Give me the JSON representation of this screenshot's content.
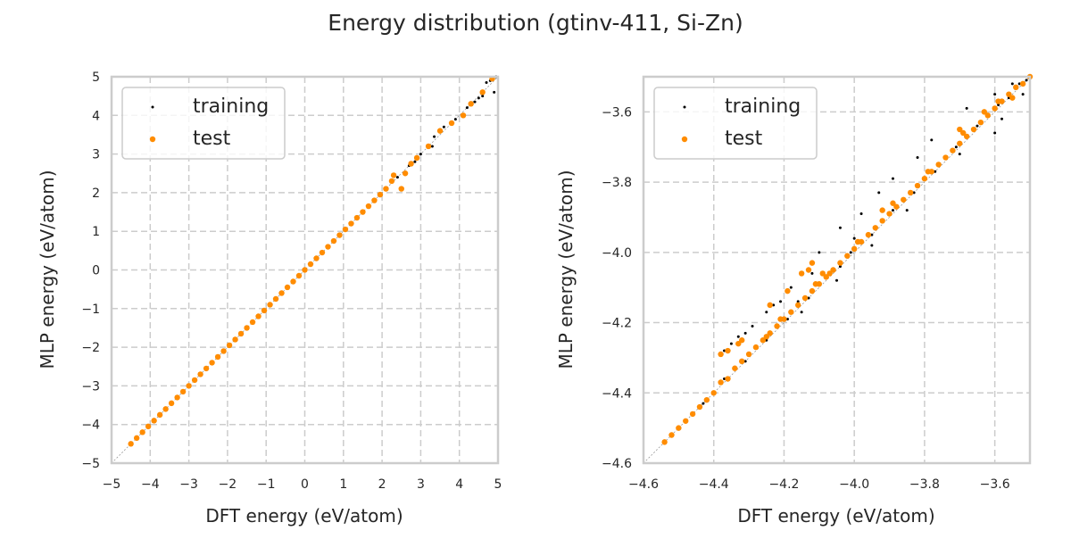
{
  "title": "Energy distribution (gtinv-411, Si-Zn)",
  "colors": {
    "training": "#000000",
    "test": "#ff8c00",
    "grid": "#cccccc",
    "frame": "#cccccc",
    "diagonal": "#999999"
  },
  "chart_data": [
    {
      "type": "scatter",
      "xlabel": "DFT energy (eV/atom)",
      "ylabel": "MLP energy (eV/atom)",
      "xlim": [
        -5,
        5
      ],
      "ylim": [
        -5,
        5
      ],
      "xticks": [
        -5,
        -4,
        -3,
        -2,
        -1,
        0,
        1,
        2,
        3,
        4,
        5
      ],
      "yticks": [
        -5,
        -4,
        -3,
        -2,
        -1,
        0,
        1,
        2,
        3,
        4,
        5
      ],
      "xtick_labels": [
        "−5",
        "−4",
        "−3",
        "−2",
        "−1",
        "0",
        "1",
        "2",
        "3",
        "4",
        "5"
      ],
      "ytick_labels": [
        "−5",
        "−4",
        "−3",
        "−2",
        "−1",
        "0",
        "1",
        "2",
        "3",
        "4",
        "5"
      ],
      "grid": true,
      "legend": {
        "placement": "top-left",
        "entries": [
          "training",
          "test"
        ]
      },
      "series": [
        {
          "name": "training",
          "points": [
            [
              -4.5,
              -4.5
            ],
            [
              -4.2,
              -4.2
            ],
            [
              -3.9,
              -3.9
            ],
            [
              -3.6,
              -3.6
            ],
            [
              -3.3,
              -3.3
            ],
            [
              -3.0,
              -3.0
            ],
            [
              -2.7,
              -2.7
            ],
            [
              -2.4,
              -2.4
            ],
            [
              -2.1,
              -2.1
            ],
            [
              -1.8,
              -1.8
            ],
            [
              -1.5,
              -1.5
            ],
            [
              -1.2,
              -1.2
            ],
            [
              -0.9,
              -0.9
            ],
            [
              -0.6,
              -0.6
            ],
            [
              -0.3,
              -0.3
            ],
            [
              0.0,
              0.0
            ],
            [
              0.3,
              0.3
            ],
            [
              0.6,
              0.6
            ],
            [
              0.9,
              0.9
            ],
            [
              1.2,
              1.2
            ],
            [
              1.5,
              1.5
            ],
            [
              1.8,
              1.8
            ],
            [
              2.1,
              2.1
            ],
            [
              2.4,
              2.4
            ],
            [
              2.7,
              2.7
            ],
            [
              3.0,
              3.0
            ],
            [
              3.3,
              3.2
            ],
            [
              3.6,
              3.7
            ],
            [
              3.9,
              3.9
            ],
            [
              4.2,
              4.2
            ],
            [
              4.5,
              4.45
            ],
            [
              4.6,
              4.5
            ],
            [
              4.7,
              4.85
            ],
            [
              4.8,
              4.9
            ],
            [
              4.9,
              4.6
            ],
            [
              4.95,
              5.0
            ],
            [
              4.4,
              4.35
            ],
            [
              3.35,
              3.45
            ],
            [
              2.85,
              2.8
            ]
          ]
        },
        {
          "name": "test",
          "points": [
            [
              -4.5,
              -4.5
            ],
            [
              -4.35,
              -4.35
            ],
            [
              -4.2,
              -4.2
            ],
            [
              -4.05,
              -4.05
            ],
            [
              -3.9,
              -3.9
            ],
            [
              -3.75,
              -3.75
            ],
            [
              -3.6,
              -3.6
            ],
            [
              -3.45,
              -3.45
            ],
            [
              -3.3,
              -3.3
            ],
            [
              -3.15,
              -3.15
            ],
            [
              -3.0,
              -3.0
            ],
            [
              -2.85,
              -2.85
            ],
            [
              -2.7,
              -2.7
            ],
            [
              -2.55,
              -2.55
            ],
            [
              -2.4,
              -2.4
            ],
            [
              -2.25,
              -2.25
            ],
            [
              -2.1,
              -2.1
            ],
            [
              -1.95,
              -1.95
            ],
            [
              -1.8,
              -1.8
            ],
            [
              -1.65,
              -1.65
            ],
            [
              -1.5,
              -1.5
            ],
            [
              -1.35,
              -1.35
            ],
            [
              -1.2,
              -1.2
            ],
            [
              -1.05,
              -1.05
            ],
            [
              -0.9,
              -0.9
            ],
            [
              -0.75,
              -0.75
            ],
            [
              -0.6,
              -0.6
            ],
            [
              -0.45,
              -0.45
            ],
            [
              -0.3,
              -0.3
            ],
            [
              -0.15,
              -0.15
            ],
            [
              0.0,
              0.0
            ],
            [
              0.15,
              0.15
            ],
            [
              0.3,
              0.3
            ],
            [
              0.45,
              0.45
            ],
            [
              0.6,
              0.6
            ],
            [
              0.75,
              0.75
            ],
            [
              0.9,
              0.9
            ],
            [
              1.05,
              1.05
            ],
            [
              1.2,
              1.2
            ],
            [
              1.35,
              1.35
            ],
            [
              1.5,
              1.5
            ],
            [
              1.65,
              1.65
            ],
            [
              1.8,
              1.8
            ],
            [
              1.95,
              1.95
            ],
            [
              2.1,
              2.1
            ],
            [
              2.25,
              2.3
            ],
            [
              2.3,
              2.45
            ],
            [
              2.5,
              2.1
            ],
            [
              2.6,
              2.5
            ],
            [
              2.75,
              2.75
            ],
            [
              2.9,
              2.9
            ],
            [
              3.2,
              3.2
            ],
            [
              3.5,
              3.6
            ],
            [
              3.8,
              3.8
            ],
            [
              4.1,
              4.0
            ],
            [
              4.3,
              4.3
            ],
            [
              4.6,
              4.6
            ],
            [
              4.85,
              4.95
            ]
          ]
        }
      ]
    },
    {
      "type": "scatter",
      "xlabel": "DFT energy (eV/atom)",
      "ylabel": "MLP energy (eV/atom)",
      "xlim": [
        -4.6,
        -3.5
      ],
      "ylim": [
        -4.6,
        -3.5
      ],
      "xticks": [
        -4.6,
        -4.4,
        -4.2,
        -4.0,
        -3.8,
        -3.6
      ],
      "yticks": [
        -4.6,
        -4.4,
        -4.2,
        -4.0,
        -3.8,
        -3.6
      ],
      "xtick_labels": [
        "−4.6",
        "−4.4",
        "−4.2",
        "−4.0",
        "−3.8",
        "−3.6"
      ],
      "ytick_labels": [
        "−4.6",
        "−4.4",
        "−4.2",
        "−4.0",
        "−3.8",
        "−3.6"
      ],
      "grid": true,
      "legend": {
        "placement": "top-left",
        "entries": [
          "training",
          "test"
        ]
      },
      "series": [
        {
          "name": "training",
          "points": [
            [
              -4.54,
              -4.54
            ],
            [
              -4.5,
              -4.5
            ],
            [
              -4.46,
              -4.46
            ],
            [
              -4.43,
              -4.43
            ],
            [
              -4.4,
              -4.4
            ],
            [
              -4.37,
              -4.36
            ],
            [
              -4.34,
              -4.33
            ],
            [
              -4.31,
              -4.31
            ],
            [
              -4.28,
              -4.27
            ],
            [
              -4.25,
              -4.25
            ],
            [
              -4.22,
              -4.21
            ],
            [
              -4.19,
              -4.19
            ],
            [
              -4.16,
              -4.14
            ],
            [
              -4.13,
              -4.13
            ],
            [
              -4.1,
              -4.09
            ],
            [
              -4.07,
              -4.06
            ],
            [
              -4.04,
              -4.04
            ],
            [
              -4.01,
              -4.0
            ],
            [
              -3.98,
              -3.97
            ],
            [
              -3.95,
              -3.95
            ],
            [
              -3.92,
              -3.91
            ],
            [
              -3.89,
              -3.88
            ],
            [
              -3.86,
              -3.85
            ],
            [
              -3.83,
              -3.83
            ],
            [
              -3.8,
              -3.79
            ],
            [
              -3.77,
              -3.77
            ],
            [
              -3.74,
              -3.73
            ],
            [
              -3.71,
              -3.7
            ],
            [
              -3.68,
              -3.67
            ],
            [
              -3.65,
              -3.64
            ],
            [
              -3.62,
              -3.61
            ],
            [
              -3.59,
              -3.58
            ],
            [
              -3.56,
              -3.56
            ],
            [
              -3.53,
              -3.52
            ],
            [
              -3.51,
              -3.51
            ],
            [
              -4.37,
              -4.28
            ],
            [
              -4.35,
              -4.26
            ],
            [
              -4.33,
              -4.24
            ],
            [
              -4.31,
              -4.23
            ],
            [
              -4.29,
              -4.21
            ],
            [
              -4.25,
              -4.17
            ],
            [
              -4.23,
              -4.15
            ],
            [
              -4.21,
              -4.14
            ],
            [
              -4.18,
              -4.1
            ],
            [
              -4.1,
              -4.0
            ],
            [
              -4.04,
              -3.93
            ],
            [
              -3.98,
              -3.89
            ],
            [
              -3.93,
              -3.83
            ],
            [
              -3.89,
              -3.79
            ],
            [
              -3.82,
              -3.73
            ],
            [
              -3.78,
              -3.68
            ],
            [
              -3.68,
              -3.59
            ],
            [
              -3.6,
              -3.55
            ],
            [
              -3.55,
              -3.52
            ],
            [
              -3.52,
              -3.55
            ],
            [
              -3.58,
              -3.62
            ],
            [
              -3.7,
              -3.72
            ],
            [
              -3.6,
              -3.66
            ],
            [
              -4.15,
              -4.17
            ],
            [
              -4.05,
              -4.08
            ],
            [
              -3.95,
              -3.98
            ],
            [
              -3.85,
              -3.88
            ],
            [
              -4.12,
              -4.06
            ],
            [
              -4.0,
              -3.96
            ]
          ]
        },
        {
          "name": "test",
          "points": [
            [
              -4.54,
              -4.54
            ],
            [
              -4.52,
              -4.52
            ],
            [
              -4.5,
              -4.5
            ],
            [
              -4.48,
              -4.48
            ],
            [
              -4.46,
              -4.46
            ],
            [
              -4.44,
              -4.44
            ],
            [
              -4.42,
              -4.42
            ],
            [
              -4.4,
              -4.4
            ],
            [
              -4.38,
              -4.37
            ],
            [
              -4.36,
              -4.36
            ],
            [
              -4.34,
              -4.33
            ],
            [
              -4.32,
              -4.31
            ],
            [
              -4.3,
              -4.29
            ],
            [
              -4.28,
              -4.27
            ],
            [
              -4.26,
              -4.25
            ],
            [
              -4.24,
              -4.23
            ],
            [
              -4.22,
              -4.21
            ],
            [
              -4.2,
              -4.19
            ],
            [
              -4.18,
              -4.17
            ],
            [
              -4.16,
              -4.15
            ],
            [
              -4.14,
              -4.13
            ],
            [
              -4.12,
              -4.11
            ],
            [
              -4.1,
              -4.09
            ],
            [
              -4.08,
              -4.07
            ],
            [
              -4.06,
              -4.05
            ],
            [
              -4.04,
              -4.03
            ],
            [
              -4.02,
              -4.01
            ],
            [
              -4.0,
              -3.99
            ],
            [
              -3.98,
              -3.97
            ],
            [
              -3.96,
              -3.95
            ],
            [
              -3.94,
              -3.93
            ],
            [
              -3.92,
              -3.91
            ],
            [
              -3.9,
              -3.89
            ],
            [
              -3.88,
              -3.87
            ],
            [
              -3.86,
              -3.85
            ],
            [
              -3.84,
              -3.83
            ],
            [
              -3.82,
              -3.81
            ],
            [
              -3.8,
              -3.79
            ],
            [
              -3.78,
              -3.77
            ],
            [
              -3.76,
              -3.75
            ],
            [
              -3.74,
              -3.73
            ],
            [
              -3.72,
              -3.71
            ],
            [
              -3.7,
              -3.69
            ],
            [
              -3.68,
              -3.67
            ],
            [
              -3.66,
              -3.65
            ],
            [
              -3.64,
              -3.63
            ],
            [
              -3.62,
              -3.61
            ],
            [
              -3.6,
              -3.59
            ],
            [
              -3.58,
              -3.57
            ],
            [
              -3.56,
              -3.55
            ],
            [
              -3.54,
              -3.53
            ],
            [
              -3.52,
              -3.52
            ],
            [
              -3.5,
              -3.5
            ],
            [
              -4.11,
              -4.09
            ],
            [
              -4.09,
              -4.06
            ],
            [
              -4.07,
              -4.06
            ],
            [
              -3.99,
              -3.97
            ],
            [
              -3.89,
              -3.86
            ],
            [
              -3.79,
              -3.77
            ],
            [
              -3.69,
              -3.66
            ],
            [
              -3.59,
              -3.57
            ],
            [
              -3.55,
              -3.56
            ],
            [
              -3.63,
              -3.6
            ],
            [
              -4.25,
              -4.24
            ],
            [
              -4.21,
              -4.19
            ],
            [
              -4.38,
              -4.29
            ],
            [
              -4.36,
              -4.28
            ],
            [
              -4.33,
              -4.26
            ],
            [
              -4.32,
              -4.25
            ],
            [
              -4.12,
              -4.03
            ],
            [
              -4.13,
              -4.05
            ],
            [
              -4.15,
              -4.06
            ],
            [
              -4.19,
              -4.11
            ],
            [
              -4.24,
              -4.15
            ],
            [
              -3.92,
              -3.88
            ],
            [
              -3.7,
              -3.65
            ]
          ]
        }
      ]
    }
  ]
}
